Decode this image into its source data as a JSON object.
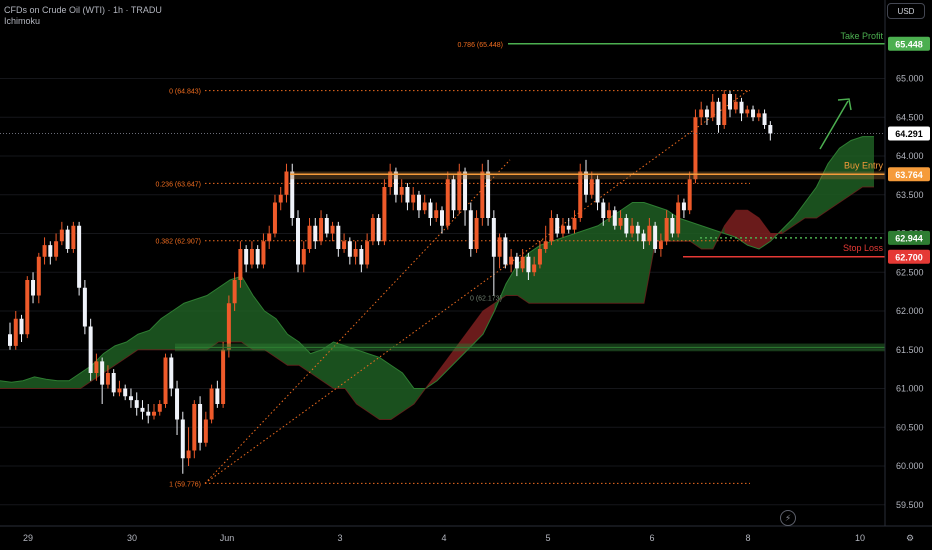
{
  "header": {
    "symbol_line": "CFDs on Crude Oil (WTI) · 1h · TRADU",
    "indicator": "Ichimoku"
  },
  "toolbar": {
    "currency": "USD"
  },
  "icons": {
    "bolt": "lightning-icon"
  },
  "colors": {
    "up": "#ee5a2a",
    "down": "#f0f3fa",
    "cloud_bull": "#1f5e23",
    "cloud_bear": "#7d2020",
    "take_profit": "#4caf50",
    "buy_entry": "#f59b3a",
    "stop_loss": "#e53935",
    "fib": "#ef6c1f"
  },
  "chart_data": {
    "type": "candlestick",
    "y_axis": {
      "ticks": [
        "59.500",
        "60.000",
        "60.500",
        "61.000",
        "61.500",
        "62.000",
        "62.500",
        "63.000",
        "63.500",
        "64.000",
        "64.500",
        "65.000"
      ],
      "tick_values": [
        59.5,
        60.0,
        60.5,
        61.0,
        61.5,
        62.0,
        62.5,
        63.0,
        63.5,
        64.0,
        64.5,
        65.0
      ],
      "range": [
        59.3,
        66.0
      ]
    },
    "x_axis": {
      "ticks": [
        "29",
        "30",
        "Jun",
        "3",
        "4",
        "5",
        "6",
        "8",
        "10"
      ]
    },
    "last_price": {
      "value": 64.291,
      "label": "64.291"
    },
    "price_labels": [
      {
        "name": "Take Profit",
        "value": 65.448,
        "label": "65.448",
        "color": "#4caf50"
      },
      {
        "name": "Buy Entry",
        "value": 63.764,
        "label": "63.764",
        "color": "#f59b3a"
      },
      {
        "name": "Ichimoku",
        "value": 62.944,
        "label": "62.944",
        "color": "#2e7d32"
      },
      {
        "name": "Stop Loss",
        "value": 62.7,
        "label": "62.700",
        "color": "#e53935"
      }
    ],
    "fib_levels": [
      {
        "label": "0 (64.843)",
        "value": 64.843
      },
      {
        "label": "0.236 (63.647)",
        "value": 63.647
      },
      {
        "label": "0.382 (62.907)",
        "value": 62.907
      },
      {
        "label": "0.786 (65.448)",
        "value": 65.448
      },
      {
        "label": "1 (59.776)",
        "value": 59.776
      }
    ],
    "fib_inner_label": {
      "label": "0 (62.173)",
      "value": 62.173
    },
    "line_labels": {
      "take_profit": "Take Profit",
      "buy_entry": "Buy Entry",
      "stop_loss": "Stop Loss"
    },
    "candles": [
      [
        61.7,
        61.55,
        61.85,
        61.5
      ],
      [
        61.55,
        61.9,
        62.0,
        61.5
      ],
      [
        61.9,
        61.7,
        61.95,
        61.6
      ],
      [
        61.7,
        62.4,
        62.45,
        61.65
      ],
      [
        62.4,
        62.2,
        62.5,
        62.1
      ],
      [
        62.2,
        62.7,
        62.75,
        62.1
      ],
      [
        62.7,
        62.85,
        62.95,
        62.6
      ],
      [
        62.85,
        62.7,
        62.9,
        62.6
      ],
      [
        62.7,
        62.9,
        63.0,
        62.65
      ],
      [
        62.9,
        63.05,
        63.15,
        62.85
      ],
      [
        63.05,
        62.8,
        63.1,
        62.75
      ],
      [
        62.8,
        63.1,
        63.15,
        62.75
      ],
      [
        63.1,
        62.3,
        63.15,
        62.2
      ],
      [
        62.3,
        61.8,
        62.4,
        61.7
      ],
      [
        61.8,
        61.2,
        61.9,
        61.1
      ],
      [
        61.2,
        61.35,
        61.45,
        61.1
      ],
      [
        61.35,
        61.05,
        61.4,
        60.8
      ],
      [
        61.05,
        61.2,
        61.3,
        61.0
      ],
      [
        61.2,
        60.95,
        61.25,
        60.9
      ],
      [
        60.95,
        61.0,
        61.1,
        60.9
      ],
      [
        61.0,
        60.9,
        61.05,
        60.85
      ],
      [
        60.9,
        60.85,
        61.0,
        60.75
      ],
      [
        60.85,
        60.75,
        60.95,
        60.65
      ],
      [
        60.75,
        60.7,
        60.85,
        60.6
      ],
      [
        60.7,
        60.65,
        60.8,
        60.55
      ],
      [
        60.65,
        60.7,
        60.8,
        60.6
      ],
      [
        60.7,
        60.8,
        60.85,
        60.65
      ],
      [
        60.8,
        61.4,
        61.45,
        60.75
      ],
      [
        61.4,
        61.0,
        61.45,
        60.9
      ],
      [
        61.0,
        60.6,
        61.1,
        60.4
      ],
      [
        60.6,
        60.1,
        60.7,
        59.9
      ],
      [
        60.1,
        60.2,
        60.5,
        60.0
      ],
      [
        60.2,
        60.8,
        60.85,
        60.1
      ],
      [
        60.8,
        60.3,
        60.9,
        60.2
      ],
      [
        60.3,
        60.6,
        60.7,
        60.25
      ],
      [
        60.6,
        61.0,
        61.05,
        60.55
      ],
      [
        61.0,
        60.8,
        61.1,
        60.75
      ],
      [
        60.8,
        61.5,
        61.6,
        60.75
      ],
      [
        61.5,
        62.1,
        62.2,
        61.4
      ],
      [
        62.1,
        62.4,
        62.5,
        62.0
      ],
      [
        62.4,
        62.8,
        62.9,
        62.3
      ],
      [
        62.8,
        62.6,
        62.85,
        62.5
      ],
      [
        62.6,
        62.8,
        62.9,
        62.55
      ],
      [
        62.8,
        62.6,
        62.85,
        62.55
      ],
      [
        62.6,
        62.9,
        63.0,
        62.55
      ],
      [
        62.9,
        63.0,
        63.1,
        62.8
      ],
      [
        63.0,
        63.4,
        63.5,
        62.95
      ],
      [
        63.4,
        63.5,
        63.6,
        63.3
      ],
      [
        63.5,
        63.8,
        63.9,
        63.4
      ],
      [
        63.8,
        63.2,
        63.9,
        63.1
      ],
      [
        63.2,
        62.6,
        63.3,
        62.5
      ],
      [
        62.6,
        62.8,
        62.9,
        62.5
      ],
      [
        62.8,
        63.1,
        63.2,
        62.75
      ],
      [
        63.1,
        62.9,
        63.2,
        62.8
      ],
      [
        62.9,
        63.2,
        63.3,
        62.85
      ],
      [
        63.2,
        63.0,
        63.25,
        62.95
      ],
      [
        63.0,
        63.1,
        63.15,
        62.9
      ],
      [
        63.1,
        62.8,
        63.15,
        62.7
      ],
      [
        62.8,
        62.9,
        63.0,
        62.75
      ],
      [
        62.9,
        62.7,
        62.95,
        62.6
      ],
      [
        62.7,
        62.8,
        62.9,
        62.6
      ],
      [
        62.8,
        62.6,
        62.85,
        62.5
      ],
      [
        62.6,
        62.9,
        63.0,
        62.55
      ],
      [
        62.9,
        63.2,
        63.25,
        62.85
      ],
      [
        63.2,
        62.9,
        63.25,
        62.85
      ],
      [
        62.9,
        63.6,
        63.7,
        62.85
      ],
      [
        63.6,
        63.8,
        63.9,
        63.5
      ],
      [
        63.8,
        63.5,
        63.85,
        63.4
      ],
      [
        63.5,
        63.6,
        63.7,
        63.4
      ],
      [
        63.6,
        63.4,
        63.65,
        63.3
      ],
      [
        63.4,
        63.5,
        63.6,
        63.3
      ],
      [
        63.5,
        63.3,
        63.55,
        63.2
      ],
      [
        63.3,
        63.4,
        63.5,
        63.25
      ],
      [
        63.4,
        63.2,
        63.45,
        63.1
      ],
      [
        63.2,
        63.3,
        63.4,
        63.15
      ],
      [
        63.3,
        63.1,
        63.35,
        63.0
      ],
      [
        63.1,
        63.7,
        63.8,
        63.05
      ],
      [
        63.7,
        63.3,
        63.75,
        63.2
      ],
      [
        63.3,
        63.8,
        63.9,
        63.25
      ],
      [
        63.8,
        63.3,
        63.85,
        63.1
      ],
      [
        63.3,
        62.8,
        63.4,
        62.7
      ],
      [
        62.8,
        63.2,
        63.3,
        62.75
      ],
      [
        63.2,
        63.8,
        63.9,
        63.1
      ],
      [
        63.8,
        63.2,
        63.95,
        63.1
      ],
      [
        63.2,
        62.7,
        63.3,
        62.2
      ],
      [
        62.7,
        62.95,
        63.0,
        62.55
      ],
      [
        62.95,
        62.6,
        63.0,
        62.55
      ],
      [
        62.6,
        62.7,
        62.8,
        62.5
      ],
      [
        62.7,
        62.55,
        62.75,
        62.45
      ],
      [
        62.55,
        62.7,
        62.8,
        62.5
      ],
      [
        62.7,
        62.5,
        62.75,
        62.4
      ],
      [
        62.5,
        62.6,
        62.7,
        62.45
      ],
      [
        62.6,
        62.8,
        62.9,
        62.55
      ],
      [
        62.8,
        62.9,
        63.1,
        62.75
      ],
      [
        62.9,
        63.2,
        63.3,
        62.85
      ],
      [
        63.2,
        63.0,
        63.25,
        62.95
      ],
      [
        63.0,
        63.1,
        63.2,
        62.95
      ],
      [
        63.1,
        63.05,
        63.2,
        63.0
      ],
      [
        63.05,
        63.2,
        63.3,
        63.0
      ],
      [
        63.2,
        63.8,
        63.9,
        63.15
      ],
      [
        63.8,
        63.5,
        63.95,
        63.4
      ],
      [
        63.5,
        63.7,
        63.8,
        63.45
      ],
      [
        63.7,
        63.4,
        63.75,
        63.3
      ],
      [
        63.4,
        63.2,
        63.45,
        63.1
      ],
      [
        63.2,
        63.3,
        63.4,
        63.15
      ],
      [
        63.3,
        63.1,
        63.35,
        63.05
      ],
      [
        63.1,
        63.2,
        63.3,
        63.05
      ],
      [
        63.2,
        63.0,
        63.25,
        62.95
      ],
      [
        63.0,
        63.1,
        63.2,
        62.95
      ],
      [
        63.1,
        63.0,
        63.15,
        62.9
      ],
      [
        63.0,
        62.9,
        63.05,
        62.8
      ],
      [
        62.9,
        63.1,
        63.2,
        62.85
      ],
      [
        63.1,
        62.8,
        63.15,
        62.75
      ],
      [
        62.8,
        62.9,
        63.0,
        62.7
      ],
      [
        62.9,
        63.2,
        63.3,
        62.85
      ],
      [
        63.2,
        63.0,
        63.25,
        62.95
      ],
      [
        63.0,
        63.4,
        63.5,
        62.95
      ],
      [
        63.4,
        63.3,
        63.45,
        63.2
      ],
      [
        63.3,
        63.7,
        63.8,
        63.25
      ],
      [
        63.7,
        64.5,
        64.6,
        63.65
      ],
      [
        64.5,
        64.6,
        64.7,
        64.4
      ],
      [
        64.6,
        64.5,
        64.65,
        64.4
      ],
      [
        64.5,
        64.7,
        64.8,
        64.45
      ],
      [
        64.7,
        64.4,
        64.75,
        64.3
      ],
      [
        64.4,
        64.8,
        64.85,
        64.35
      ],
      [
        64.8,
        64.6,
        64.84,
        64.5
      ],
      [
        64.6,
        64.7,
        64.8,
        64.55
      ],
      [
        64.7,
        64.55,
        64.75,
        64.45
      ],
      [
        64.55,
        64.6,
        64.65,
        64.5
      ],
      [
        64.6,
        64.5,
        64.65,
        64.45
      ],
      [
        64.5,
        64.55,
        64.6,
        64.45
      ],
      [
        64.55,
        64.4,
        64.6,
        64.35
      ],
      [
        64.4,
        64.29,
        64.45,
        64.2
      ]
    ],
    "ichimoku_cloud": {
      "span_a": [
        61.1,
        61.08,
        61.1,
        61.15,
        61.12,
        61.1,
        61.1,
        61.2,
        61.3,
        61.45,
        61.55,
        61.6,
        61.7,
        61.75,
        61.9,
        62.0,
        62.1,
        62.15,
        62.2,
        62.3,
        62.4,
        62.45,
        62.2,
        62.0,
        61.9,
        61.7,
        61.6,
        61.45,
        61.5,
        61.6,
        61.55,
        61.5,
        61.45,
        61.4,
        61.3,
        61.2,
        61.0,
        61.0,
        61.1,
        61.25,
        61.4,
        61.55,
        61.7,
        62.0,
        62.35,
        62.6,
        62.75,
        62.85,
        62.9,
        62.95,
        63.0,
        63.05,
        63.1,
        63.2,
        63.3,
        63.4,
        63.4,
        63.35,
        63.3,
        63.2,
        63.15,
        63.1,
        63.05,
        63.0,
        62.95,
        62.85,
        62.8,
        62.9,
        63.05,
        63.2,
        63.4,
        63.6,
        63.9,
        64.1,
        64.2,
        64.25,
        64.25
      ],
      "span_b": [
        61.0,
        61.0,
        61.0,
        61.0,
        61.0,
        61.0,
        61.0,
        61.0,
        61.1,
        61.2,
        61.3,
        61.4,
        61.5,
        61.5,
        61.5,
        61.5,
        61.5,
        61.5,
        61.5,
        61.6,
        61.6,
        61.6,
        61.5,
        61.5,
        61.4,
        61.3,
        61.3,
        61.2,
        61.1,
        61.0,
        61.0,
        60.8,
        60.7,
        60.6,
        60.6,
        60.7,
        60.8,
        61.0,
        61.2,
        61.4,
        61.6,
        61.8,
        62.0,
        62.1,
        62.2,
        62.2,
        62.1,
        62.1,
        62.1,
        62.1,
        62.1,
        62.1,
        62.1,
        62.1,
        62.1,
        62.1,
        62.1,
        62.9,
        62.9,
        62.9,
        62.9,
        62.8,
        62.8,
        63.1,
        63.3,
        63.3,
        63.2,
        63.0,
        63.0,
        63.1,
        63.2,
        63.2,
        63.3,
        63.4,
        63.5,
        63.6,
        63.6
      ]
    }
  }
}
